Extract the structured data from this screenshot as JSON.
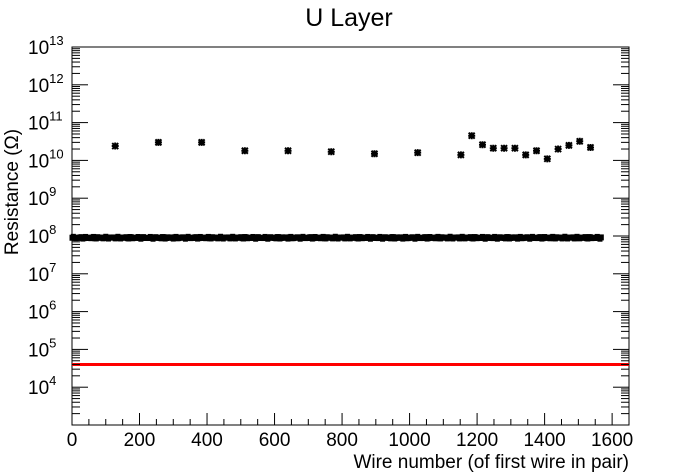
{
  "chart_data": {
    "type": "scatter",
    "title": "U Layer",
    "xlabel": "Wire number (of first wire in pair)",
    "ylabel": "Resistance (Ω)",
    "xlim": [
      0,
      1650
    ],
    "ylim": [
      1000.0,
      10000000000000.0
    ],
    "yscale": "log",
    "grid": false,
    "x_tick_labels": [
      "0",
      "200",
      "400",
      "600",
      "800",
      "1000",
      "1200",
      "1400",
      "1600"
    ],
    "x_tick_values": [
      0,
      200,
      400,
      600,
      800,
      1000,
      1200,
      1400,
      1600
    ],
    "y_tick_base": "10",
    "y_tick_exponents": [
      "4",
      "5",
      "6",
      "7",
      "8",
      "9",
      "10",
      "11",
      "12",
      "13"
    ],
    "threshold_line": {
      "y": 40000,
      "color": "#ff0000"
    },
    "marker_color": "#000000",
    "series": [
      {
        "points_high": [
          [
            128,
            24000000000.0
          ],
          [
            256,
            30000000000.0
          ],
          [
            384,
            30000000000.0
          ],
          [
            512,
            18000000000.0
          ],
          [
            640,
            18000000000.0
          ],
          [
            768,
            17000000000.0
          ],
          [
            896,
            15000000000.0
          ],
          [
            1024,
            16000000000.0
          ],
          [
            1152,
            14000000000.0
          ],
          [
            1184,
            45000000000.0
          ],
          [
            1216,
            26000000000.0
          ],
          [
            1248,
            21000000000.0
          ],
          [
            1280,
            21000000000.0
          ],
          [
            1312,
            21000000000.0
          ],
          [
            1344,
            14000000000.0
          ],
          [
            1376,
            18000000000.0
          ],
          [
            1408,
            11000000000.0
          ],
          [
            1440,
            20000000000.0
          ],
          [
            1472,
            25000000000.0
          ],
          [
            1504,
            32000000000.0
          ],
          [
            1536,
            22000000000.0
          ]
        ],
        "bulk": {
          "x_start": 0,
          "x_end": 1568,
          "x_step": 4,
          "y": 90000000.0
        }
      }
    ]
  }
}
